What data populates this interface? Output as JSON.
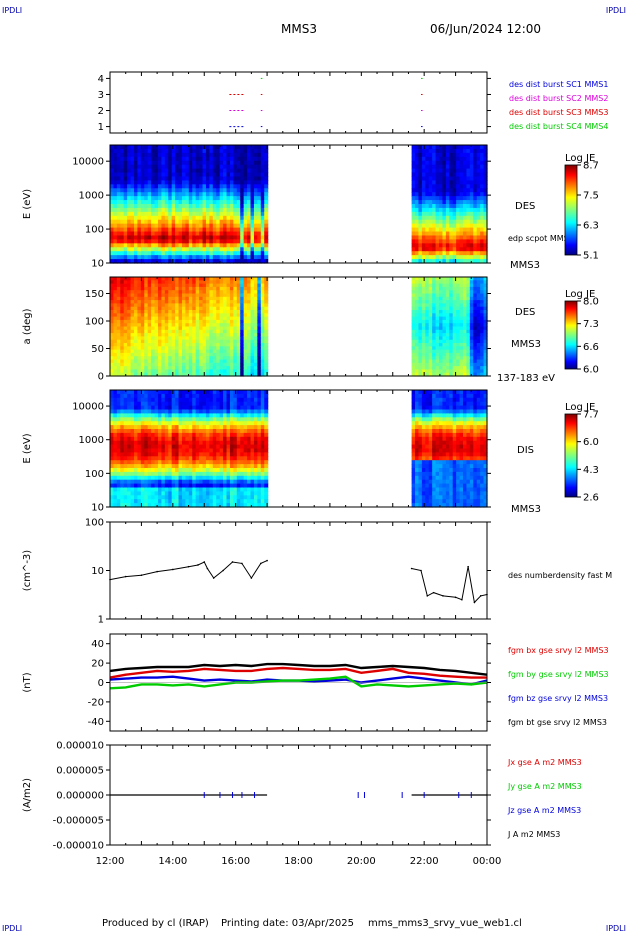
{
  "corners": {
    "tl": "IPDLI",
    "tr": "IPDLI",
    "bl": "IPDLI",
    "br": "IPDLI"
  },
  "header": {
    "spacecraft": "MMS3",
    "datetime": "06/Jun/2024 12:00"
  },
  "footer": {
    "producer": "Produced by cl (IRAP)",
    "printing_date": "Printing date: 03/Apr/2025",
    "filename": "mms_mms3_srvy_vue_web1.cl"
  },
  "colors": {
    "red": "#dd0000",
    "green": "#00cc00",
    "blue": "#0000dd",
    "magenta": "#dd00dd",
    "black": "#000000"
  },
  "chart_data": [
    {
      "type": "scatter",
      "id": "burst",
      "ylim": [
        0.6,
        4.4
      ],
      "yticks": [
        "1",
        "2",
        "3",
        "4"
      ],
      "legend": [
        {
          "label": "des dist burst SC1 MMS1",
          "color": "#0000dd"
        },
        {
          "label": "des dist burst SC2 MMS2",
          "color": "#dd00dd"
        },
        {
          "label": "des dist burst SC3 MMS3",
          "color": "#dd0000"
        },
        {
          "label": "des dist burst SC4 MMS4",
          "color": "#00cc00"
        }
      ],
      "series": [
        {
          "sc": 1,
          "color": "#0000dd",
          "intervals": [
            [
              15.8,
              16.3
            ],
            [
              16.8,
              16.85
            ],
            [
              21.9,
              21.95
            ]
          ]
        },
        {
          "sc": 2,
          "color": "#dd00dd",
          "intervals": [
            [
              15.8,
              16.3
            ],
            [
              16.8,
              16.85
            ],
            [
              21.9,
              21.95
            ]
          ]
        },
        {
          "sc": 3,
          "color": "#dd0000",
          "intervals": [
            [
              15.8,
              16.3
            ],
            [
              16.8,
              16.85
            ],
            [
              21.9,
              21.95
            ]
          ]
        },
        {
          "sc": 4,
          "color": "#00cc00",
          "intervals": [
            [
              16.8,
              16.85
            ],
            [
              21.9,
              21.95
            ]
          ]
        }
      ]
    },
    {
      "type": "heatmap",
      "id": "des_energy",
      "ylabel": "E (eV)",
      "yscale": "log",
      "ylim": [
        10,
        30000
      ],
      "yticks": [
        "10",
        "100",
        "1000",
        "10000"
      ],
      "instrument": "DES",
      "sc_label": "MMS3",
      "overlay": "edp scpot MMS3",
      "colorbar_title": "Log JE",
      "colorbar_ticks": [
        "8.7",
        "7.5",
        "6.3",
        "5.1"
      ],
      "gaps": [
        [
          17.0,
          21.6
        ]
      ]
    },
    {
      "type": "heatmap",
      "id": "des_pitch",
      "ylabel": "a (deg)",
      "ylim": [
        0,
        180
      ],
      "yticks": [
        "0",
        "50",
        "100",
        "150"
      ],
      "instrument": "DES",
      "sc_label": "MMS3",
      "energy_range": "137-183 eV",
      "colorbar_title": "Log JE",
      "colorbar_ticks": [
        "8.0",
        "7.3",
        "6.6",
        "6.0"
      ],
      "gaps": [
        [
          17.0,
          21.6
        ]
      ]
    },
    {
      "type": "heatmap",
      "id": "dis_energy",
      "ylabel": "E (eV)",
      "yscale": "log",
      "ylim": [
        10,
        30000
      ],
      "yticks": [
        "10",
        "100",
        "1000",
        "10000"
      ],
      "instrument": "DIS",
      "sc_label": "MMS3",
      "colorbar_title": "Log JE",
      "colorbar_ticks": [
        "7.7",
        "6.0",
        "4.3",
        "2.6"
      ],
      "gaps": [
        [
          17.0,
          21.6
        ]
      ]
    },
    {
      "type": "line",
      "id": "density",
      "ylabel": "(cm^-3)",
      "yscale": "log",
      "ylim": [
        1,
        100
      ],
      "yticks": [
        "1",
        "10",
        "100"
      ],
      "series": [
        {
          "name": "des numberdensity fast M",
          "color": "#000000",
          "x": [
            12.0,
            12.5,
            13.0,
            13.5,
            14.0,
            14.5,
            14.8,
            15.0,
            15.1,
            15.3,
            15.6,
            15.9,
            16.2,
            16.5,
            16.8,
            17.0,
            21.6,
            21.9,
            22.1,
            22.3,
            22.6,
            23.0,
            23.2,
            23.4,
            23.6,
            23.8,
            24.0
          ],
          "y": [
            6.5,
            7.5,
            8.0,
            9.5,
            10.5,
            12.0,
            13.0,
            15.0,
            11.0,
            7.0,
            10.0,
            15.0,
            14.0,
            7.0,
            14.0,
            16.0,
            11.0,
            10.0,
            3.0,
            3.5,
            3.0,
            2.8,
            2.5,
            12.0,
            2.2,
            3.0,
            3.2
          ]
        }
      ]
    },
    {
      "type": "line",
      "id": "bfield",
      "ylabel": "(nT)",
      "ylim": [
        -50,
        50
      ],
      "yticks": [
        "-40",
        "-20",
        "0",
        "20",
        "40"
      ],
      "x": [
        12.0,
        12.5,
        13.0,
        13.5,
        14.0,
        14.5,
        15.0,
        15.5,
        16.0,
        16.5,
        17.0,
        17.5,
        18.0,
        18.5,
        19.0,
        19.5,
        20.0,
        20.5,
        21.0,
        21.5,
        22.0,
        22.5,
        23.0,
        23.5,
        24.0
      ],
      "series": [
        {
          "name": "fgm bx gse srvy l2 MMS3",
          "color": "#dd0000",
          "values": [
            5,
            8,
            10,
            12,
            11,
            12,
            14,
            13,
            12,
            12,
            14,
            15,
            14,
            13,
            13,
            14,
            10,
            12,
            14,
            10,
            9,
            7,
            6,
            5,
            5
          ]
        },
        {
          "name": "fgm by gse srvy l2 MMS3",
          "color": "#00cc00",
          "values": [
            -6,
            -5,
            -2,
            -2,
            -3,
            -2,
            -4,
            -2,
            0,
            0,
            1,
            2,
            2,
            3,
            4,
            6,
            -4,
            -2,
            -3,
            -4,
            -3,
            -2,
            -1,
            -2,
            0
          ]
        },
        {
          "name": "fgm bz gse srvy l2 MMS3",
          "color": "#0000dd",
          "values": [
            3,
            4,
            5,
            5,
            6,
            4,
            2,
            3,
            2,
            1,
            3,
            2,
            2,
            1,
            2,
            3,
            0,
            2,
            4,
            6,
            4,
            2,
            0,
            -2,
            2
          ]
        },
        {
          "name": "fgm bt gse srvy l2 MMS3",
          "color": "#000000",
          "values": [
            12,
            14,
            15,
            16,
            16,
            16,
            18,
            17,
            18,
            17,
            19,
            19,
            18,
            17,
            17,
            18,
            15,
            16,
            17,
            16,
            15,
            13,
            12,
            10,
            8
          ]
        }
      ]
    },
    {
      "type": "line",
      "id": "current",
      "ylabel": "(A/m2)",
      "ylim": [
        -1e-05,
        1e-05
      ],
      "yticks": [
        "-0.000010",
        "-0.000005",
        "0.000000",
        "0.000005",
        "0.000010"
      ],
      "xticks": [
        "12:00",
        "14:00",
        "16:00",
        "18:00",
        "20:00",
        "22:00",
        "00:00"
      ],
      "series": [
        {
          "name": "Jx gse A m2 MMS3",
          "color": "#dd0000"
        },
        {
          "name": "Jy gse A m2 MMS3",
          "color": "#00cc00"
        },
        {
          "name": "Jz gse A m2 MMS3",
          "color": "#0000dd"
        },
        {
          "name": "J A m2 MMS3",
          "color": "#000000"
        }
      ],
      "values": "approximately zero; small spikes near 15:00-16:30, 20:00, 22:00, 23:30"
    }
  ]
}
